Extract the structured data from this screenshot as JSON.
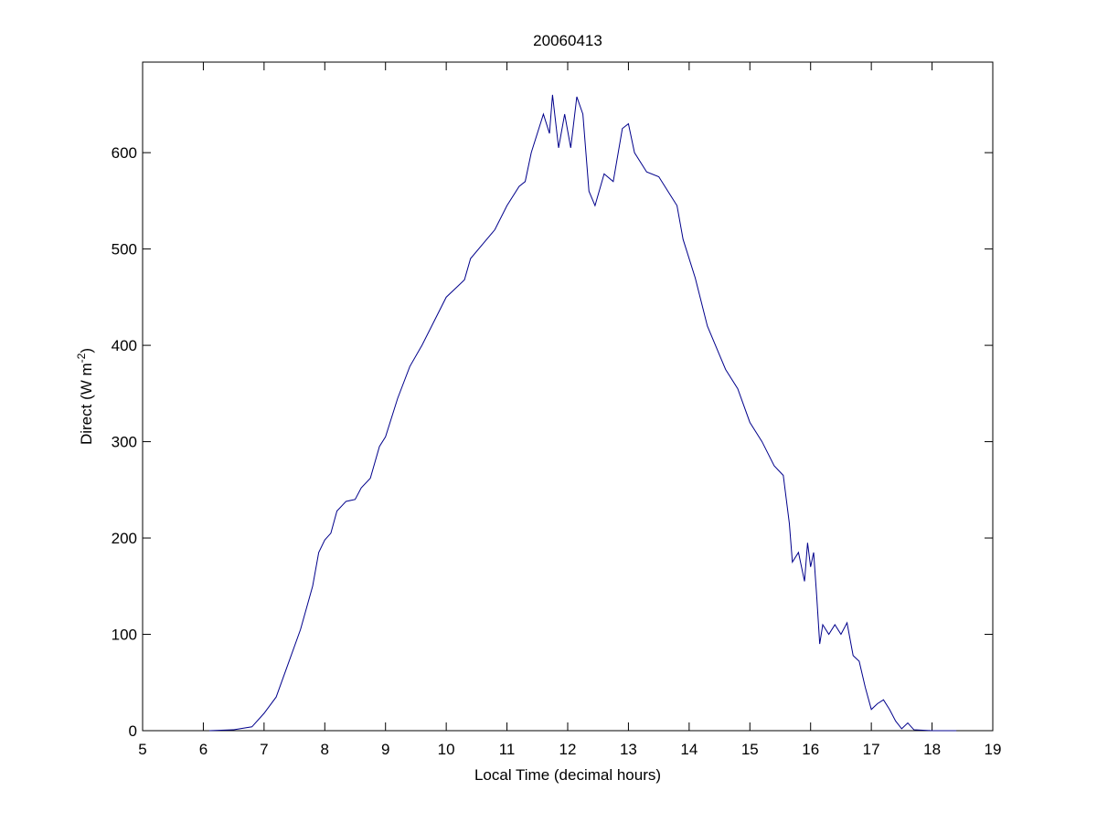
{
  "chart_data": {
    "type": "line",
    "title": "20060413",
    "xlabel": "Local Time (decimal hours)",
    "ylabel_parts": [
      "Direct (W m",
      "-2",
      ")"
    ],
    "xlim": [
      5,
      19
    ],
    "xticks": [
      5,
      6,
      7,
      8,
      9,
      10,
      11,
      12,
      13,
      14,
      15,
      16,
      17,
      18,
      19
    ],
    "ylim": [
      0,
      694
    ],
    "yticks": [
      0,
      100,
      200,
      300,
      400,
      500,
      600
    ],
    "grid": false,
    "series": [
      {
        "name": "Direct",
        "color": "#00008b",
        "x": [
          6.1,
          6.5,
          6.8,
          7.0,
          7.2,
          7.4,
          7.6,
          7.8,
          7.9,
          8.0,
          8.1,
          8.2,
          8.35,
          8.5,
          8.6,
          8.75,
          8.9,
          9.0,
          9.2,
          9.4,
          9.6,
          9.8,
          10.0,
          10.2,
          10.3,
          10.4,
          10.6,
          10.8,
          11.0,
          11.2,
          11.3,
          11.4,
          11.6,
          11.7,
          11.75,
          11.85,
          11.95,
          12.05,
          12.15,
          12.25,
          12.35,
          12.45,
          12.6,
          12.75,
          12.9,
          13.0,
          13.1,
          13.3,
          13.5,
          13.7,
          13.8,
          13.9,
          14.1,
          14.3,
          14.5,
          14.6,
          14.8,
          15.0,
          15.2,
          15.4,
          15.55,
          15.65,
          15.7,
          15.8,
          15.9,
          15.95,
          16.0,
          16.05,
          16.1,
          16.15,
          16.2,
          16.3,
          16.4,
          16.5,
          16.6,
          16.7,
          16.8,
          16.9,
          17.0,
          17.1,
          17.2,
          17.3,
          17.4,
          17.5,
          17.6,
          17.7,
          18.0,
          18.4
        ],
        "values": [
          0,
          1,
          4,
          18,
          35,
          70,
          105,
          150,
          185,
          198,
          205,
          228,
          238,
          240,
          252,
          262,
          295,
          305,
          345,
          378,
          400,
          425,
          450,
          462,
          468,
          490,
          505,
          520,
          545,
          565,
          570,
          600,
          640,
          620,
          660,
          605,
          640,
          605,
          658,
          640,
          560,
          545,
          578,
          570,
          625,
          630,
          600,
          580,
          575,
          555,
          545,
          510,
          470,
          420,
          390,
          375,
          355,
          320,
          300,
          275,
          265,
          215,
          175,
          185,
          155,
          195,
          170,
          185,
          140,
          90,
          110,
          100,
          110,
          100,
          112,
          78,
          72,
          45,
          22,
          28,
          32,
          22,
          10,
          2,
          8,
          1,
          0,
          0
        ]
      }
    ]
  }
}
